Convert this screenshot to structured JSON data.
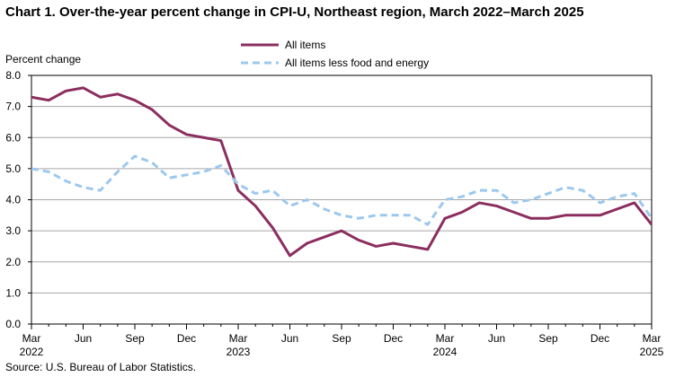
{
  "chart_data": {
    "type": "line",
    "title": "Chart 1. Over-the-year percent change in CPI-U, Northeast region, March 2022–March 2025",
    "ylabel": "Percent change",
    "xlabel": "",
    "ylim": [
      0.0,
      8.0
    ],
    "yticks": [
      "0.0",
      "1.0",
      "2.0",
      "3.0",
      "4.0",
      "5.0",
      "6.0",
      "7.0",
      "8.0"
    ],
    "grid": true,
    "legend_position": "top-center",
    "x": [
      "Mar 2022",
      "Apr 2022",
      "May 2022",
      "Jun 2022",
      "Jul 2022",
      "Aug 2022",
      "Sep 2022",
      "Oct 2022",
      "Nov 2022",
      "Dec 2022",
      "Jan 2023",
      "Feb 2023",
      "Mar 2023",
      "Apr 2023",
      "May 2023",
      "Jun 2023",
      "Jul 2023",
      "Aug 2023",
      "Sep 2023",
      "Oct 2023",
      "Nov 2023",
      "Dec 2023",
      "Jan 2024",
      "Feb 2024",
      "Mar 2024",
      "Apr 2024",
      "May 2024",
      "Jun 2024",
      "Jul 2024",
      "Aug 2024",
      "Sep 2024",
      "Oct 2024",
      "Nov 2024",
      "Dec 2024",
      "Jan 2025",
      "Feb 2025",
      "Mar 2025"
    ],
    "xticks": [
      {
        "index": 0,
        "month": "Mar",
        "year": "2022"
      },
      {
        "index": 3,
        "month": "Jun",
        "year": ""
      },
      {
        "index": 6,
        "month": "Sep",
        "year": ""
      },
      {
        "index": 9,
        "month": "Dec",
        "year": ""
      },
      {
        "index": 12,
        "month": "Mar",
        "year": "2023"
      },
      {
        "index": 15,
        "month": "Jun",
        "year": ""
      },
      {
        "index": 18,
        "month": "Sep",
        "year": ""
      },
      {
        "index": 21,
        "month": "Dec",
        "year": ""
      },
      {
        "index": 24,
        "month": "Mar",
        "year": "2024"
      },
      {
        "index": 27,
        "month": "Jun",
        "year": ""
      },
      {
        "index": 30,
        "month": "Sep",
        "year": ""
      },
      {
        "index": 33,
        "month": "Dec",
        "year": ""
      },
      {
        "index": 36,
        "month": "Mar",
        "year": "2025"
      }
    ],
    "series": [
      {
        "name": "All items",
        "color": "#8B2E5F",
        "style": "solid",
        "values": [
          7.3,
          7.2,
          7.5,
          7.6,
          7.3,
          7.4,
          7.2,
          6.9,
          6.4,
          6.1,
          6.0,
          5.9,
          4.3,
          3.8,
          3.1,
          2.2,
          2.6,
          2.8,
          3.0,
          2.7,
          2.5,
          2.6,
          2.5,
          2.4,
          3.4,
          3.6,
          3.9,
          3.8,
          3.6,
          3.4,
          3.4,
          3.5,
          3.5,
          3.5,
          3.7,
          3.9,
          3.2
        ]
      },
      {
        "name": "All items less food and energy",
        "color": "#9DC8EE",
        "style": "dashed",
        "values": [
          5.0,
          4.9,
          4.6,
          4.4,
          4.3,
          4.9,
          5.4,
          5.2,
          4.7,
          4.8,
          4.9,
          5.1,
          4.5,
          4.2,
          4.3,
          3.8,
          4.0,
          3.7,
          3.5,
          3.4,
          3.5,
          3.5,
          3.5,
          3.2,
          4.0,
          4.1,
          4.3,
          4.3,
          3.9,
          4.0,
          4.2,
          4.4,
          4.3,
          3.9,
          4.1,
          4.2,
          3.4
        ]
      }
    ]
  },
  "source": "Source: U.S. Bureau of Labor Statistics."
}
